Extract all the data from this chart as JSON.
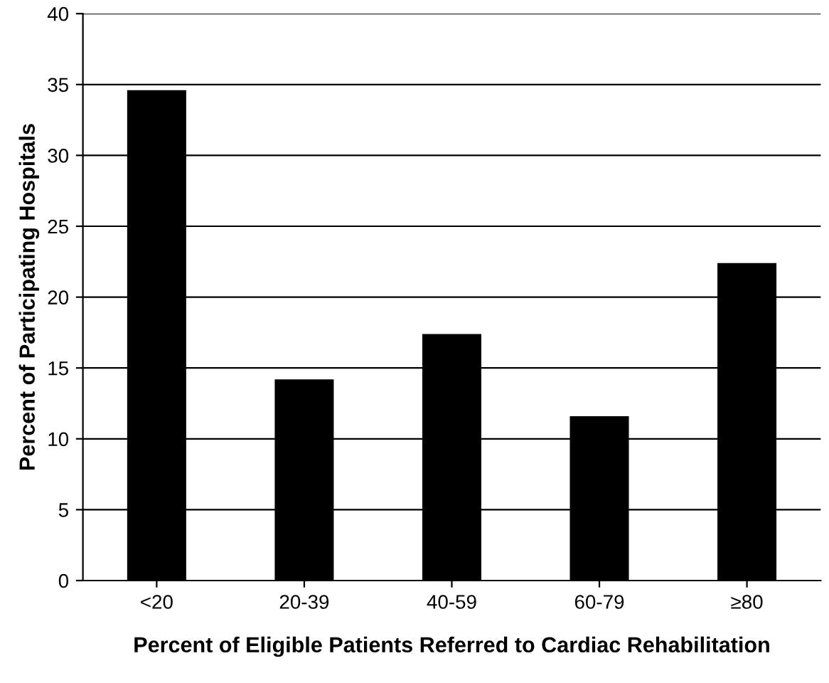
{
  "chart_data": {
    "type": "bar",
    "ylabel": "Percent of Participating Hospitals",
    "xlabel": "Percent of Eligible Patients Referred to Cardiac Rehabilitation",
    "categories": [
      "<20",
      "20-39",
      "40-59",
      "60-79",
      "≥80"
    ],
    "values": [
      34.6,
      14.2,
      17.4,
      11.6,
      22.4
    ],
    "color": "#000000",
    "ylim": [
      0,
      40
    ],
    "yticks": [
      0,
      5,
      10,
      15,
      20,
      25,
      30,
      35,
      40
    ],
    "grid": "y"
  }
}
